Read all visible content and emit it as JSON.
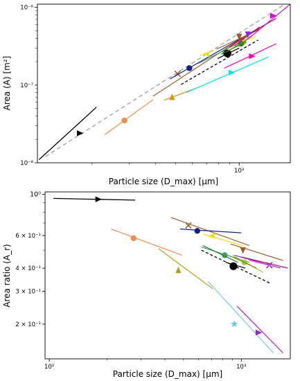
{
  "figure": {
    "background": "#ffffff"
  },
  "chart_data": [
    {
      "type": "line",
      "id": "top",
      "xscale": "log",
      "yscale": "log",
      "xlim": [
        110,
        1750
      ],
      "ylim": [
        1e-08,
        1.1e-06
      ],
      "xlabel": "Particle size (D_max) [μm]",
      "ylabel": "Area (A) [m²]",
      "xticks": [
        {
          "v": 1000,
          "label": "10³"
        }
      ],
      "yticks": [
        {
          "v": 1e-08,
          "label": "10⁻⁸"
        },
        {
          "v": 1e-07,
          "label": "10⁻⁷"
        },
        {
          "v": 1e-06,
          "label": "10⁻⁶"
        }
      ],
      "grid": false,
      "series": [
        {
          "color": "#aaaaaa",
          "dash": "6,4",
          "width": 1.5,
          "points": [
            [
              120,
              1.2e-08
            ],
            [
              1650,
              1.1e-06
            ]
          ]
        },
        {
          "color": "#000000",
          "width": 1.3,
          "points": [
            [
              112,
              1.1e-08
            ],
            [
              210,
              5.2e-08
            ]
          ],
          "marker": {
            "shape": "tri-right",
            "at": [
              175,
              2.4e-08
            ]
          }
        },
        {
          "color": "#ef8c4e",
          "width": 1.2,
          "points": [
            [
              230,
              2.3e-08
            ],
            [
              390,
              6.5e-08
            ]
          ],
          "marker": {
            "shape": "circle",
            "at": [
              285,
              3.5e-08
            ]
          }
        },
        {
          "color": "#e09010",
          "width": 1.2,
          "points": [
            [
              440,
              6.4e-08
            ],
            [
              650,
              9.5e-08
            ]
          ],
          "marker": {
            "shape": "tri-up",
            "at": [
              480,
              7e-08
            ]
          }
        },
        {
          "color": "#00e5e5",
          "width": 1.2,
          "points": [
            [
              560,
              8e-08
            ],
            [
              1380,
              2.3e-07
            ]
          ],
          "marker": {
            "shape": "tri-right",
            "at": [
              920,
              1.45e-07
            ]
          }
        },
        {
          "color": "#ff00b4",
          "width": 1.2,
          "points": [
            [
              850,
              1.65e-07
            ],
            [
              1500,
              3.4e-07
            ]
          ],
          "marker": {
            "shape": "tri-right",
            "at": [
              1150,
              2.35e-07
            ]
          }
        },
        {
          "color": "#a06030",
          "width": 1.2,
          "points": [
            [
              390,
              7.2e-08
            ],
            [
              1100,
              4.5e-07
            ]
          ],
          "marker": {
            "shape": "x",
            "at": [
              510,
              1.4e-07
            ]
          }
        },
        {
          "color": "#12208a",
          "width": 1.2,
          "points": [
            [
              470,
              1.2e-07
            ],
            [
              1150,
              4.8e-07
            ]
          ],
          "marker": {
            "shape": "circle",
            "at": [
              580,
              1.65e-07
            ]
          }
        },
        {
          "color": "#e8e020",
          "width": 1.2,
          "points": [
            [
              650,
              2.4e-07
            ],
            [
              760,
              2.8e-07
            ]
          ],
          "marker": {
            "shape": "tri-left",
            "at": [
              700,
              2.5e-07
            ]
          }
        },
        {
          "color": "#a05a28",
          "width": 1.2,
          "points": [
            [
              780,
              2.9e-07
            ],
            [
              1250,
              5.2e-07
            ]
          ],
          "marker": {
            "shape": "tri-down",
            "at": [
              1000,
              4.2e-07
            ]
          }
        },
        {
          "color": "#40a060",
          "width": 1.2,
          "points": [
            [
              640,
              1.9e-07
            ],
            [
              1100,
              4e-07
            ]
          ],
          "marker": {
            "shape": "circle",
            "at": [
              860,
              2.6e-07
            ]
          }
        },
        {
          "color": "#9acd32",
          "width": 1.2,
          "points": [
            [
              900,
              2.8e-07
            ],
            [
              1150,
              4.4e-07
            ]
          ],
          "marker": {
            "shape": "circle",
            "at": [
              1050,
              3.6e-07
            ]
          }
        },
        {
          "color": "#f0e000",
          "width": 1.2,
          "points": [
            [
              980,
              3.5e-07
            ],
            [
              1200,
              4.2e-07
            ]
          ]
        },
        {
          "color": "#ff0000",
          "width": 1.2,
          "points": [
            [
              900,
              3.1e-07
            ],
            [
              1250,
              5.4e-07
            ]
          ]
        },
        {
          "color": "#000000",
          "dash": "4,3",
          "width": 1.3,
          "points": [
            [
              530,
              1.02e-07
            ],
            [
              1230,
              3.8e-07
            ]
          ]
        },
        {
          "color": "#000000",
          "width": 1.2,
          "points": [
            [
              790,
              2.2e-07
            ],
            [
              1000,
              3e-07
            ]
          ],
          "marker": {
            "shape": "circle-big",
            "at": [
              880,
              2.55e-07
            ]
          }
        },
        {
          "color": "#2e7d32",
          "width": 1.2,
          "points": [
            [
              820,
              2.5e-07
            ],
            [
              1080,
              3.6e-07
            ]
          ],
          "marker": {
            "shape": "circle",
            "at": [
              1020,
              3.4e-07
            ]
          }
        },
        {
          "color": "#808000",
          "width": 1.2,
          "points": [
            [
              880,
              2.7e-07
            ],
            [
              1100,
              3.9e-07
            ]
          ]
        },
        {
          "color": "#8a2be2",
          "width": 1.2,
          "points": [
            [
              950,
              3.2e-07
            ],
            [
              1250,
              5.6e-07
            ]
          ],
          "marker": {
            "shape": "tri-down",
            "at": [
              1100,
              4.5e-07
            ]
          }
        },
        {
          "color": "#e000e0",
          "width": 1.2,
          "points": [
            [
              1100,
              3.9e-07
            ],
            [
              1750,
              1.1e-06
            ]
          ],
          "marker": {
            "shape": "tri-right",
            "at": [
              1450,
              7.8e-07
            ]
          }
        },
        {
          "color": "#c00060",
          "width": 1.2,
          "points": [
            [
              1150,
              4.8e-07
            ],
            [
              1500,
              7.2e-07
            ]
          ]
        }
      ]
    },
    {
      "type": "line",
      "id": "bottom",
      "xscale": "log",
      "yscale": "log",
      "xlim": [
        95,
        1800
      ],
      "ylim": [
        0.13,
        1.03
      ],
      "xlabel": "Particle size (D_max) [μm]",
      "ylabel": "Area ratio (A_r)",
      "xticks": [
        {
          "v": 100,
          "label": "10²"
        },
        {
          "v": 1000,
          "label": "10³"
        }
      ],
      "yticks": [
        {
          "v": 1.0,
          "label": "10⁰",
          "big": true
        },
        {
          "v": 0.6,
          "label": "6 × 10⁻¹"
        },
        {
          "v": 0.4,
          "label": "4 × 10⁻¹"
        },
        {
          "v": 0.3,
          "label": "3 × 10⁻¹"
        },
        {
          "v": 0.2,
          "label": "2 × 10⁻¹"
        }
      ],
      "grid": false,
      "series": [
        {
          "color": "#000000",
          "width": 1.3,
          "points": [
            [
              105,
              0.95
            ],
            [
              280,
              0.93
            ]
          ],
          "marker": {
            "shape": "tri-right",
            "at": [
              180,
              0.94
            ]
          }
        },
        {
          "color": "#ef8c4e",
          "width": 1.2,
          "points": [
            [
              210,
              0.65
            ],
            [
              490,
              0.47
            ]
          ],
          "marker": {
            "shape": "circle",
            "at": [
              275,
              0.58
            ]
          }
        },
        {
          "color": "#b8a010",
          "width": 1.2,
          "points": [
            [
              370,
              0.51
            ],
            [
              710,
              0.31
            ]
          ],
          "marker": {
            "shape": "tri-up",
            "at": [
              470,
              0.39
            ]
          }
        },
        {
          "color": "#6ec8f0",
          "width": 1.2,
          "points": [
            [
              670,
              0.34
            ],
            [
              1470,
              0.14
            ]
          ],
          "marker": {
            "shape": "star",
            "at": [
              920,
              0.2
            ]
          }
        },
        {
          "color": "#a020d0",
          "width": 1.2,
          "points": [
            [
              950,
              0.25
            ],
            [
              1650,
              0.14
            ]
          ],
          "marker": {
            "shape": "tri-right",
            "at": [
              1230,
              0.18
            ]
          }
        },
        {
          "color": "#a06030",
          "width": 1.2,
          "points": [
            [
              430,
              0.75
            ],
            [
              1100,
              0.53
            ]
          ],
          "marker": {
            "shape": "x",
            "at": [
              530,
              0.68
            ]
          }
        },
        {
          "color": "#12208a",
          "width": 1.2,
          "points": [
            [
              480,
              0.65
            ],
            [
              1000,
              0.62
            ]
          ],
          "marker": {
            "shape": "circle",
            "at": [
              590,
              0.635
            ]
          }
        },
        {
          "color": "#e8e020",
          "width": 1.2,
          "points": [
            [
              630,
              0.61
            ],
            [
              1020,
              0.53
            ]
          ],
          "marker": {
            "shape": "tri-left",
            "at": [
              700,
              0.595
            ]
          }
        },
        {
          "color": "#a05a28",
          "width": 1.2,
          "points": [
            [
              880,
              0.54
            ],
            [
              1650,
              0.44
            ]
          ],
          "marker": {
            "shape": "tri-down",
            "at": [
              1020,
              0.5
            ]
          }
        },
        {
          "color": "#40a060",
          "width": 1.2,
          "points": [
            [
              620,
              0.52
            ],
            [
              1100,
              0.43
            ]
          ],
          "marker": {
            "shape": "circle",
            "at": [
              820,
              0.47
            ]
          }
        },
        {
          "color": "#9acd32",
          "width": 1.2,
          "points": [
            [
              900,
              0.47
            ],
            [
              1300,
              0.38
            ]
          ],
          "marker": {
            "shape": "circle",
            "at": [
              1040,
              0.43
            ]
          }
        },
        {
          "color": "#2e7d32",
          "width": 1.2,
          "points": [
            [
              630,
              0.53
            ],
            [
              960,
              0.43
            ]
          ]
        },
        {
          "color": "#000000",
          "dash": "4,3",
          "width": 1.3,
          "points": [
            [
              620,
              0.5
            ],
            [
              1430,
              0.33
            ]
          ]
        },
        {
          "color": "#000000",
          "width": 1.2,
          "points": [
            [
              830,
              0.43
            ],
            [
              1050,
              0.4
            ]
          ],
          "marker": {
            "shape": "circle-big",
            "at": [
              910,
              0.41
            ]
          }
        },
        {
          "color": "#808000",
          "width": 1.2,
          "points": [
            [
              900,
              0.46
            ],
            [
              1200,
              0.4
            ]
          ]
        },
        {
          "color": "#8a2be2",
          "width": 1.2,
          "points": [
            [
              920,
              0.47
            ],
            [
              1600,
              0.4
            ]
          ],
          "marker": {
            "shape": "x",
            "at": [
              1400,
              0.415
            ]
          }
        },
        {
          "color": "#c00060",
          "width": 1.2,
          "points": [
            [
              1000,
              0.46
            ],
            [
              1750,
              0.4
            ]
          ]
        },
        {
          "color": "#ff66cc",
          "width": 1.2,
          "points": [
            [
              1100,
              0.44
            ],
            [
              1450,
              0.41
            ]
          ]
        }
      ]
    }
  ]
}
